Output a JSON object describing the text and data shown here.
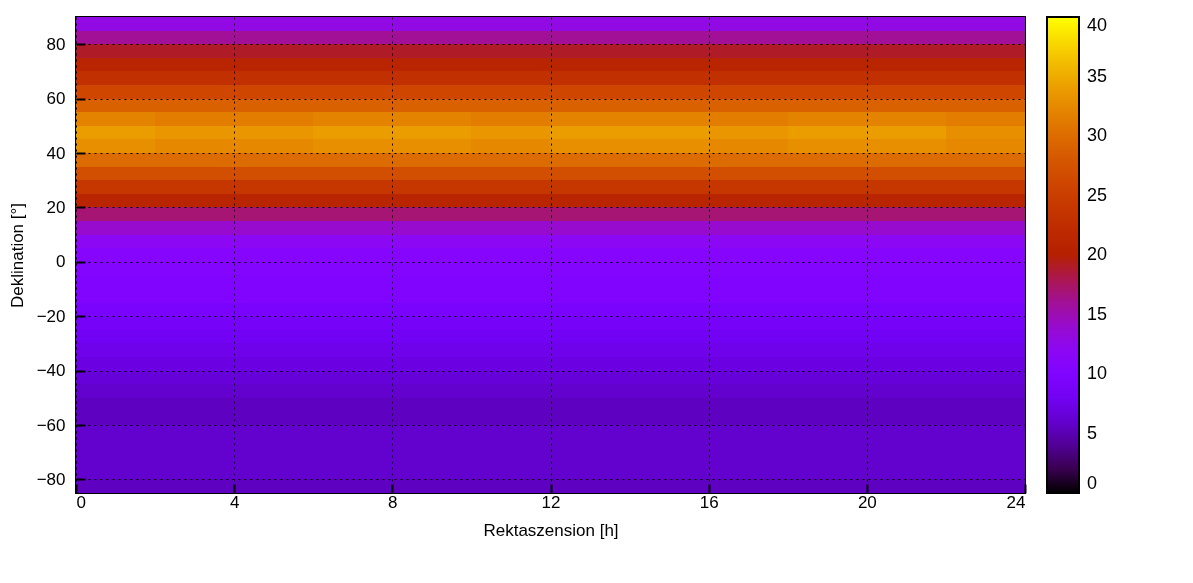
{
  "chart_data": {
    "type": "heatmap",
    "xlabel": "Rektaszension [h]",
    "ylabel": "Deklination [°]",
    "x": [
      1,
      3,
      5,
      7,
      9,
      11,
      13,
      15,
      17,
      19,
      21,
      23
    ],
    "cells": [
      [
        13,
        13,
        13,
        13,
        13,
        13,
        13,
        13,
        13,
        13,
        13,
        13
      ],
      [
        16,
        16,
        16,
        16,
        16,
        16,
        16,
        16,
        16,
        16,
        16,
        16
      ],
      [
        19,
        19,
        19,
        19,
        19,
        19,
        19,
        19,
        19,
        19,
        19,
        19
      ],
      [
        21,
        21,
        21,
        21,
        21,
        21,
        21,
        21,
        21,
        21,
        21,
        21
      ],
      [
        23,
        23,
        23,
        23,
        23,
        23,
        23,
        23,
        23,
        23,
        23,
        23
      ],
      [
        26,
        26,
        26,
        26,
        26,
        26,
        26,
        26,
        26,
        26,
        26,
        26
      ],
      [
        29,
        29,
        29,
        29,
        29,
        29,
        29,
        29,
        29,
        29,
        29,
        29
      ],
      [
        32,
        31.5,
        31.5,
        32,
        32,
        31.5,
        32,
        32,
        31.5,
        32,
        32,
        31.5
      ],
      [
        34,
        33.5,
        33.5,
        34,
        34,
        33.5,
        34,
        34,
        33.5,
        34,
        34,
        33
      ],
      [
        33,
        32.5,
        32.5,
        33,
        33,
        32.5,
        33,
        33,
        32.5,
        33,
        33,
        32.5
      ],
      [
        30,
        30,
        30,
        30,
        30,
        30,
        30,
        30,
        30,
        30,
        30,
        30
      ],
      [
        27,
        27,
        27,
        27,
        27,
        27,
        27,
        27,
        27,
        27,
        27,
        27
      ],
      [
        24,
        24,
        24,
        24,
        24,
        24,
        24,
        24,
        24,
        24,
        24,
        24
      ],
      [
        21,
        21,
        21,
        21,
        21,
        21,
        21,
        21,
        21,
        21,
        21,
        21
      ],
      [
        17,
        17,
        17,
        17,
        17,
        17,
        17,
        17,
        17,
        17,
        17,
        17
      ],
      [
        14,
        14,
        14,
        14,
        14,
        14,
        14,
        14,
        14,
        14,
        14,
        14
      ],
      [
        12,
        12,
        12,
        12,
        12,
        12,
        12,
        12,
        12,
        12,
        12,
        12
      ],
      [
        11,
        11,
        11,
        11,
        11,
        11,
        11,
        11,
        11,
        11,
        11,
        11
      ],
      [
        10.5,
        10.5,
        10.5,
        10.5,
        10.5,
        10.5,
        10.5,
        10.5,
        10.5,
        10.5,
        10.5,
        10.5
      ],
      [
        10,
        10,
        10,
        10,
        10,
        10,
        10,
        10,
        10,
        10,
        10,
        10
      ],
      [
        10,
        10,
        10,
        10,
        10,
        10,
        10,
        10,
        10,
        10,
        10,
        10
      ],
      [
        9,
        9,
        9,
        9,
        9,
        9,
        9,
        9,
        9,
        9,
        9,
        9
      ],
      [
        8.5,
        8.5,
        8.5,
        8.5,
        8.5,
        8.5,
        8.5,
        8.5,
        8.5,
        8.5,
        8.5,
        8.5
      ],
      [
        8,
        8,
        8,
        8,
        8,
        8,
        8,
        8,
        8,
        8,
        8,
        8
      ],
      [
        7.5,
        7.5,
        7.5,
        7.5,
        7.5,
        7.5,
        7.5,
        7.5,
        7.5,
        7.5,
        7.5,
        7.5
      ],
      [
        7,
        7,
        7,
        7,
        7,
        7,
        7,
        7,
        7,
        7,
        7,
        7
      ],
      [
        6.5,
        6.5,
        6.5,
        6.5,
        6.5,
        6.5,
        6.5,
        6.5,
        6.5,
        6.5,
        6.5,
        6.5
      ],
      [
        6,
        6,
        6,
        6,
        6,
        6,
        6,
        6,
        6,
        6,
        6,
        6
      ],
      [
        5.5,
        5.5,
        5.5,
        5.5,
        5.5,
        5.5,
        5.5,
        5.5,
        5.5,
        5.5,
        5.5,
        5.5
      ],
      [
        5.5,
        5.5,
        5.5,
        5.5,
        5.5,
        5.5,
        5.5,
        5.5,
        5.5,
        5.5,
        5.5,
        5.5
      ],
      [
        6,
        6,
        6,
        6,
        6,
        6,
        6,
        6,
        6,
        6,
        6,
        6
      ],
      [
        6,
        6,
        6,
        6,
        6,
        6,
        6,
        6,
        6,
        6,
        6,
        6
      ],
      [
        6,
        6,
        6,
        6,
        6,
        6,
        6,
        6,
        6,
        6,
        6,
        6
      ],
      [
        6,
        6,
        6,
        6,
        6,
        6,
        6,
        6,
        6,
        6,
        6,
        6
      ],
      [
        5.5,
        5.5,
        5.5,
        5.5,
        5.5,
        5.5,
        5.5,
        5.5,
        5.5,
        5.5,
        5.5,
        5.5
      ]
    ],
    "xlim": [
      0,
      24
    ],
    "xticks": [
      0,
      4,
      8,
      12,
      16,
      20,
      24
    ],
    "ylim": [
      -85,
      90
    ],
    "yticks": [
      {
        "value": -80,
        "label": "−80"
      },
      {
        "value": -60,
        "label": "−60"
      },
      {
        "value": -40,
        "label": "−40"
      },
      {
        "value": -20,
        "label": "−20"
      },
      0,
      20,
      40,
      60,
      80
    ],
    "clim": [
      0,
      40
    ],
    "cticks": [
      0,
      5,
      10,
      15,
      20,
      25,
      30,
      35,
      40
    ],
    "grid": true
  }
}
